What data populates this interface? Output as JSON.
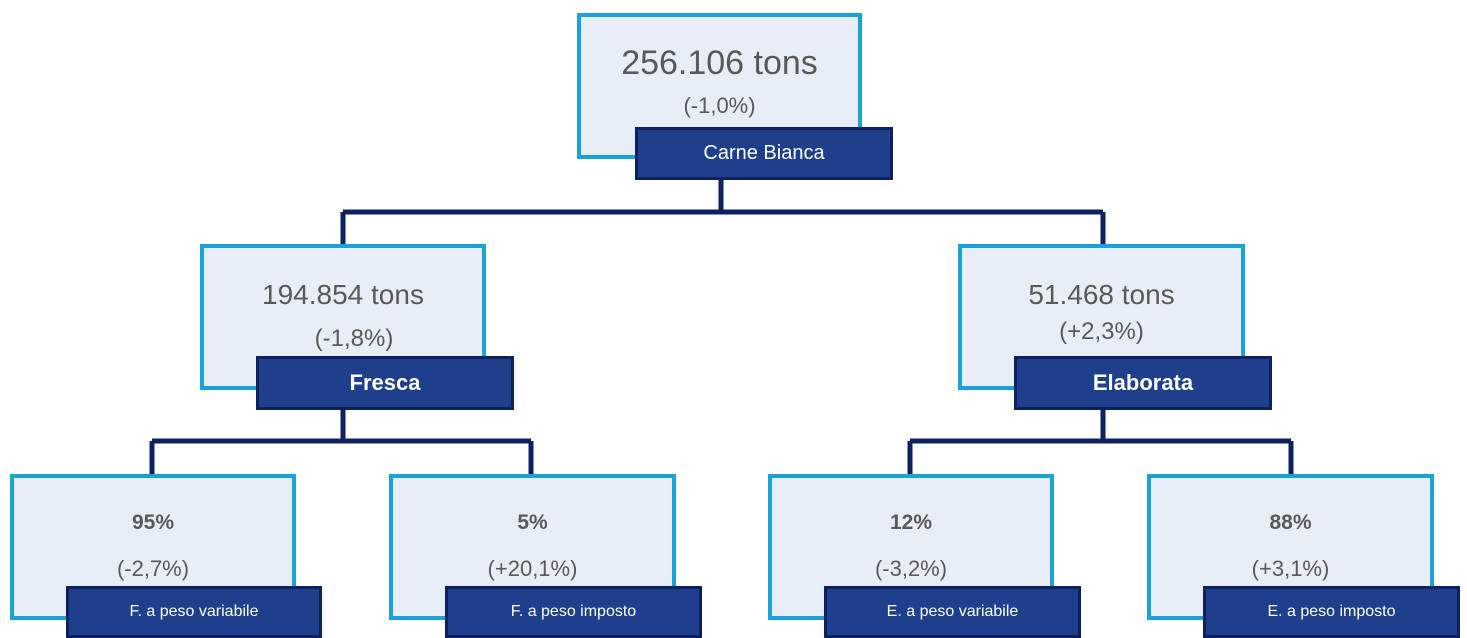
{
  "root": {
    "value": "256.106 tons",
    "change": "(-1,0%)",
    "label": "Carne Bianca"
  },
  "fresca": {
    "value": "194.854 tons",
    "change": "(-1,8%)",
    "label": "Fresca"
  },
  "elaborata": {
    "value": "51.468 tons",
    "change": "(+2,3%)",
    "label": "Elaborata"
  },
  "leaves": [
    {
      "value": "95%",
      "change": "(-2,7%)",
      "label": "F. a peso variabile"
    },
    {
      "value": "5%",
      "change": "(+20,1%)",
      "label": "F. a peso imposto"
    },
    {
      "value": "12%",
      "change": "(-3,2%)",
      "label": "E. a peso variabile"
    },
    {
      "value": "88%",
      "change": "(+3,1%)",
      "label": "E. a peso imposto"
    }
  ],
  "colors": {
    "node_fill": "#e8eef7",
    "node_border": "#1aa3d9",
    "label_fill": "#1e3f8c",
    "connector": "#0d2160"
  }
}
